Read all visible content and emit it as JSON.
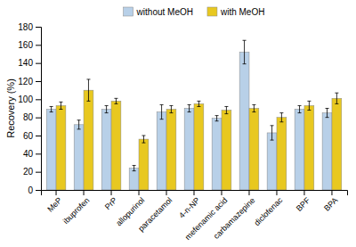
{
  "chart_data": {
    "type": "bar",
    "ylabel": "Recovery (%)",
    "categories": [
      "MeP",
      "ibuprofen",
      "PrP",
      "allopurinol",
      "paracetamol",
      "4-n-NP",
      "mefenamic acid",
      "carbamazepine",
      "diclofenac",
      "BPF",
      "BPA"
    ],
    "series": [
      {
        "name": "without MeOH",
        "color": "#b8d0e8",
        "values": [
          89,
          72,
          89,
          24,
          86,
          90,
          79,
          152,
          63,
          89,
          85
        ],
        "errors": [
          3,
          5,
          4,
          3,
          8,
          4,
          3,
          13,
          8,
          4,
          5
        ]
      },
      {
        "name": "with MeOH",
        "color": "#e8c820",
        "values": [
          93,
          110,
          98,
          56,
          89,
          95,
          88,
          90,
          80,
          93,
          101
        ],
        "errors": [
          4,
          12,
          3,
          4,
          4,
          3,
          4,
          4,
          5,
          5,
          6
        ]
      }
    ],
    "ylim": [
      0,
      180
    ],
    "yticks": [
      0,
      20,
      40,
      60,
      80,
      100,
      120,
      140,
      160,
      180
    ],
    "legend": "top",
    "grid": false
  }
}
